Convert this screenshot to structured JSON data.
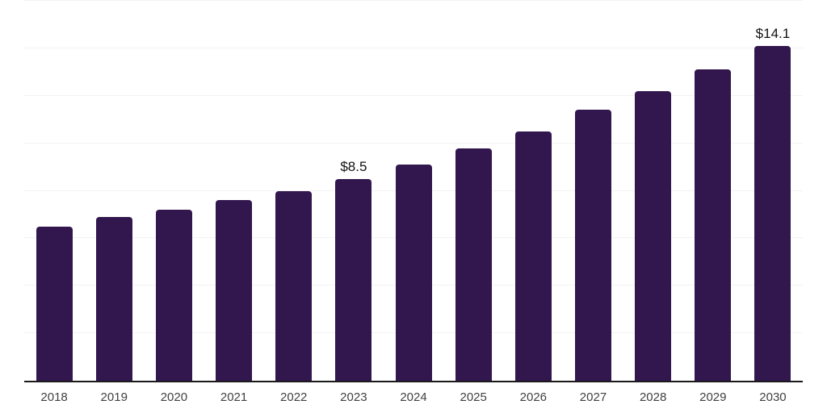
{
  "chart_data": {
    "type": "bar",
    "title": "",
    "xlabel": "",
    "ylabel": "",
    "categories": [
      "2018",
      "2019",
      "2020",
      "2021",
      "2022",
      "2023",
      "2024",
      "2025",
      "2026",
      "2027",
      "2028",
      "2029",
      "2030"
    ],
    "values": [
      6.5,
      6.9,
      7.2,
      7.6,
      8.0,
      8.5,
      9.1,
      9.8,
      10.5,
      11.4,
      12.2,
      13.1,
      14.1
    ],
    "bar_labels": [
      "",
      "",
      "",
      "",
      "",
      "$8.5",
      "",
      "",
      "",
      "",
      "",
      "",
      "$14.1"
    ],
    "ylim": [
      0,
      16
    ],
    "gridline_step": 2,
    "grid": true,
    "y_tick_labels_visible": false,
    "legend": "none",
    "colors": {
      "background": "#ffffff",
      "bar": "#32164e",
      "gridline": "#f2f2f2",
      "axis_line": "#1a1a1a",
      "tick_label": "#404040",
      "value_label": "#111111"
    }
  }
}
